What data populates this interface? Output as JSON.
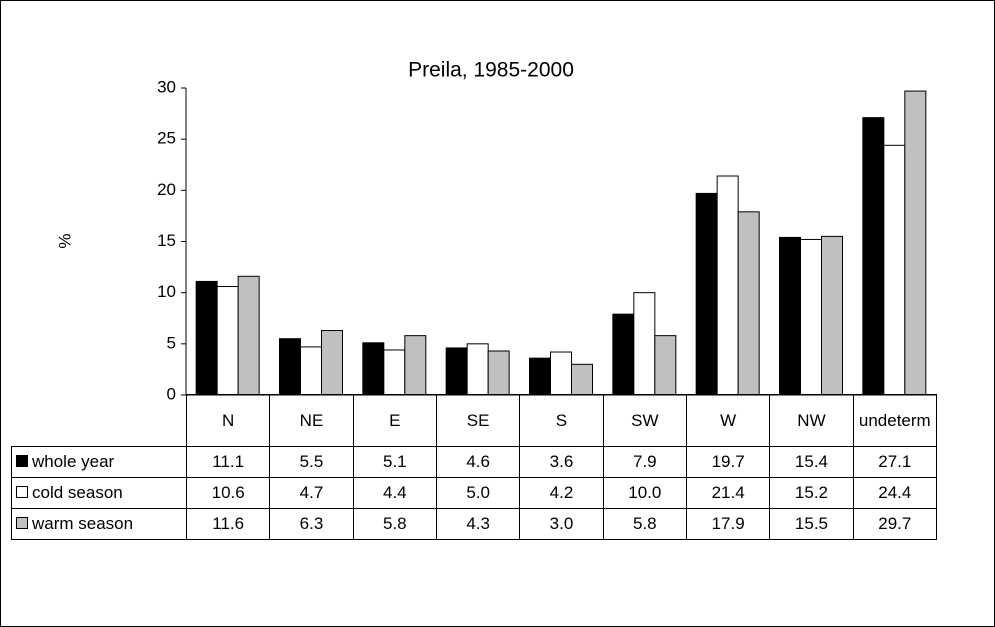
{
  "chart_data": {
    "type": "bar",
    "title": "Preila, 1985-2000",
    "y_label": "%",
    "categories": [
      "N",
      "NE",
      "E",
      "SE",
      "S",
      "SW",
      "W",
      "NW",
      "undeterm"
    ],
    "series": [
      {
        "name": "whole year",
        "color": "#000000",
        "values": [
          11.1,
          5.5,
          5.1,
          4.6,
          3.6,
          7.9,
          19.7,
          15.4,
          27.1
        ],
        "value_labels": [
          "11.1",
          "5.5",
          "5.1",
          "4.6",
          "3.6",
          "7.9",
          "19.7",
          "15.4",
          "27.1"
        ]
      },
      {
        "name": "cold season",
        "color": "#ffffff",
        "values": [
          10.6,
          4.7,
          4.4,
          5.0,
          4.2,
          10.0,
          21.4,
          15.2,
          24.4
        ],
        "value_labels": [
          "10.6",
          "4.7",
          "4.4",
          "5.0",
          "4.2",
          "10.0",
          "21.4",
          "15.2",
          "24.4"
        ]
      },
      {
        "name": "warm season",
        "color": "#c0c0c0",
        "values": [
          11.6,
          6.3,
          5.8,
          4.3,
          3.0,
          5.8,
          17.9,
          15.5,
          29.7
        ],
        "value_labels": [
          "11.6",
          "6.3",
          "5.8",
          "4.3",
          "3.0",
          "5.8",
          "17.9",
          "15.5",
          "29.7"
        ]
      }
    ],
    "ylim": [
      0,
      30
    ],
    "yticks": [
      0,
      5,
      10,
      15,
      20,
      25,
      30
    ],
    "grid": false
  }
}
